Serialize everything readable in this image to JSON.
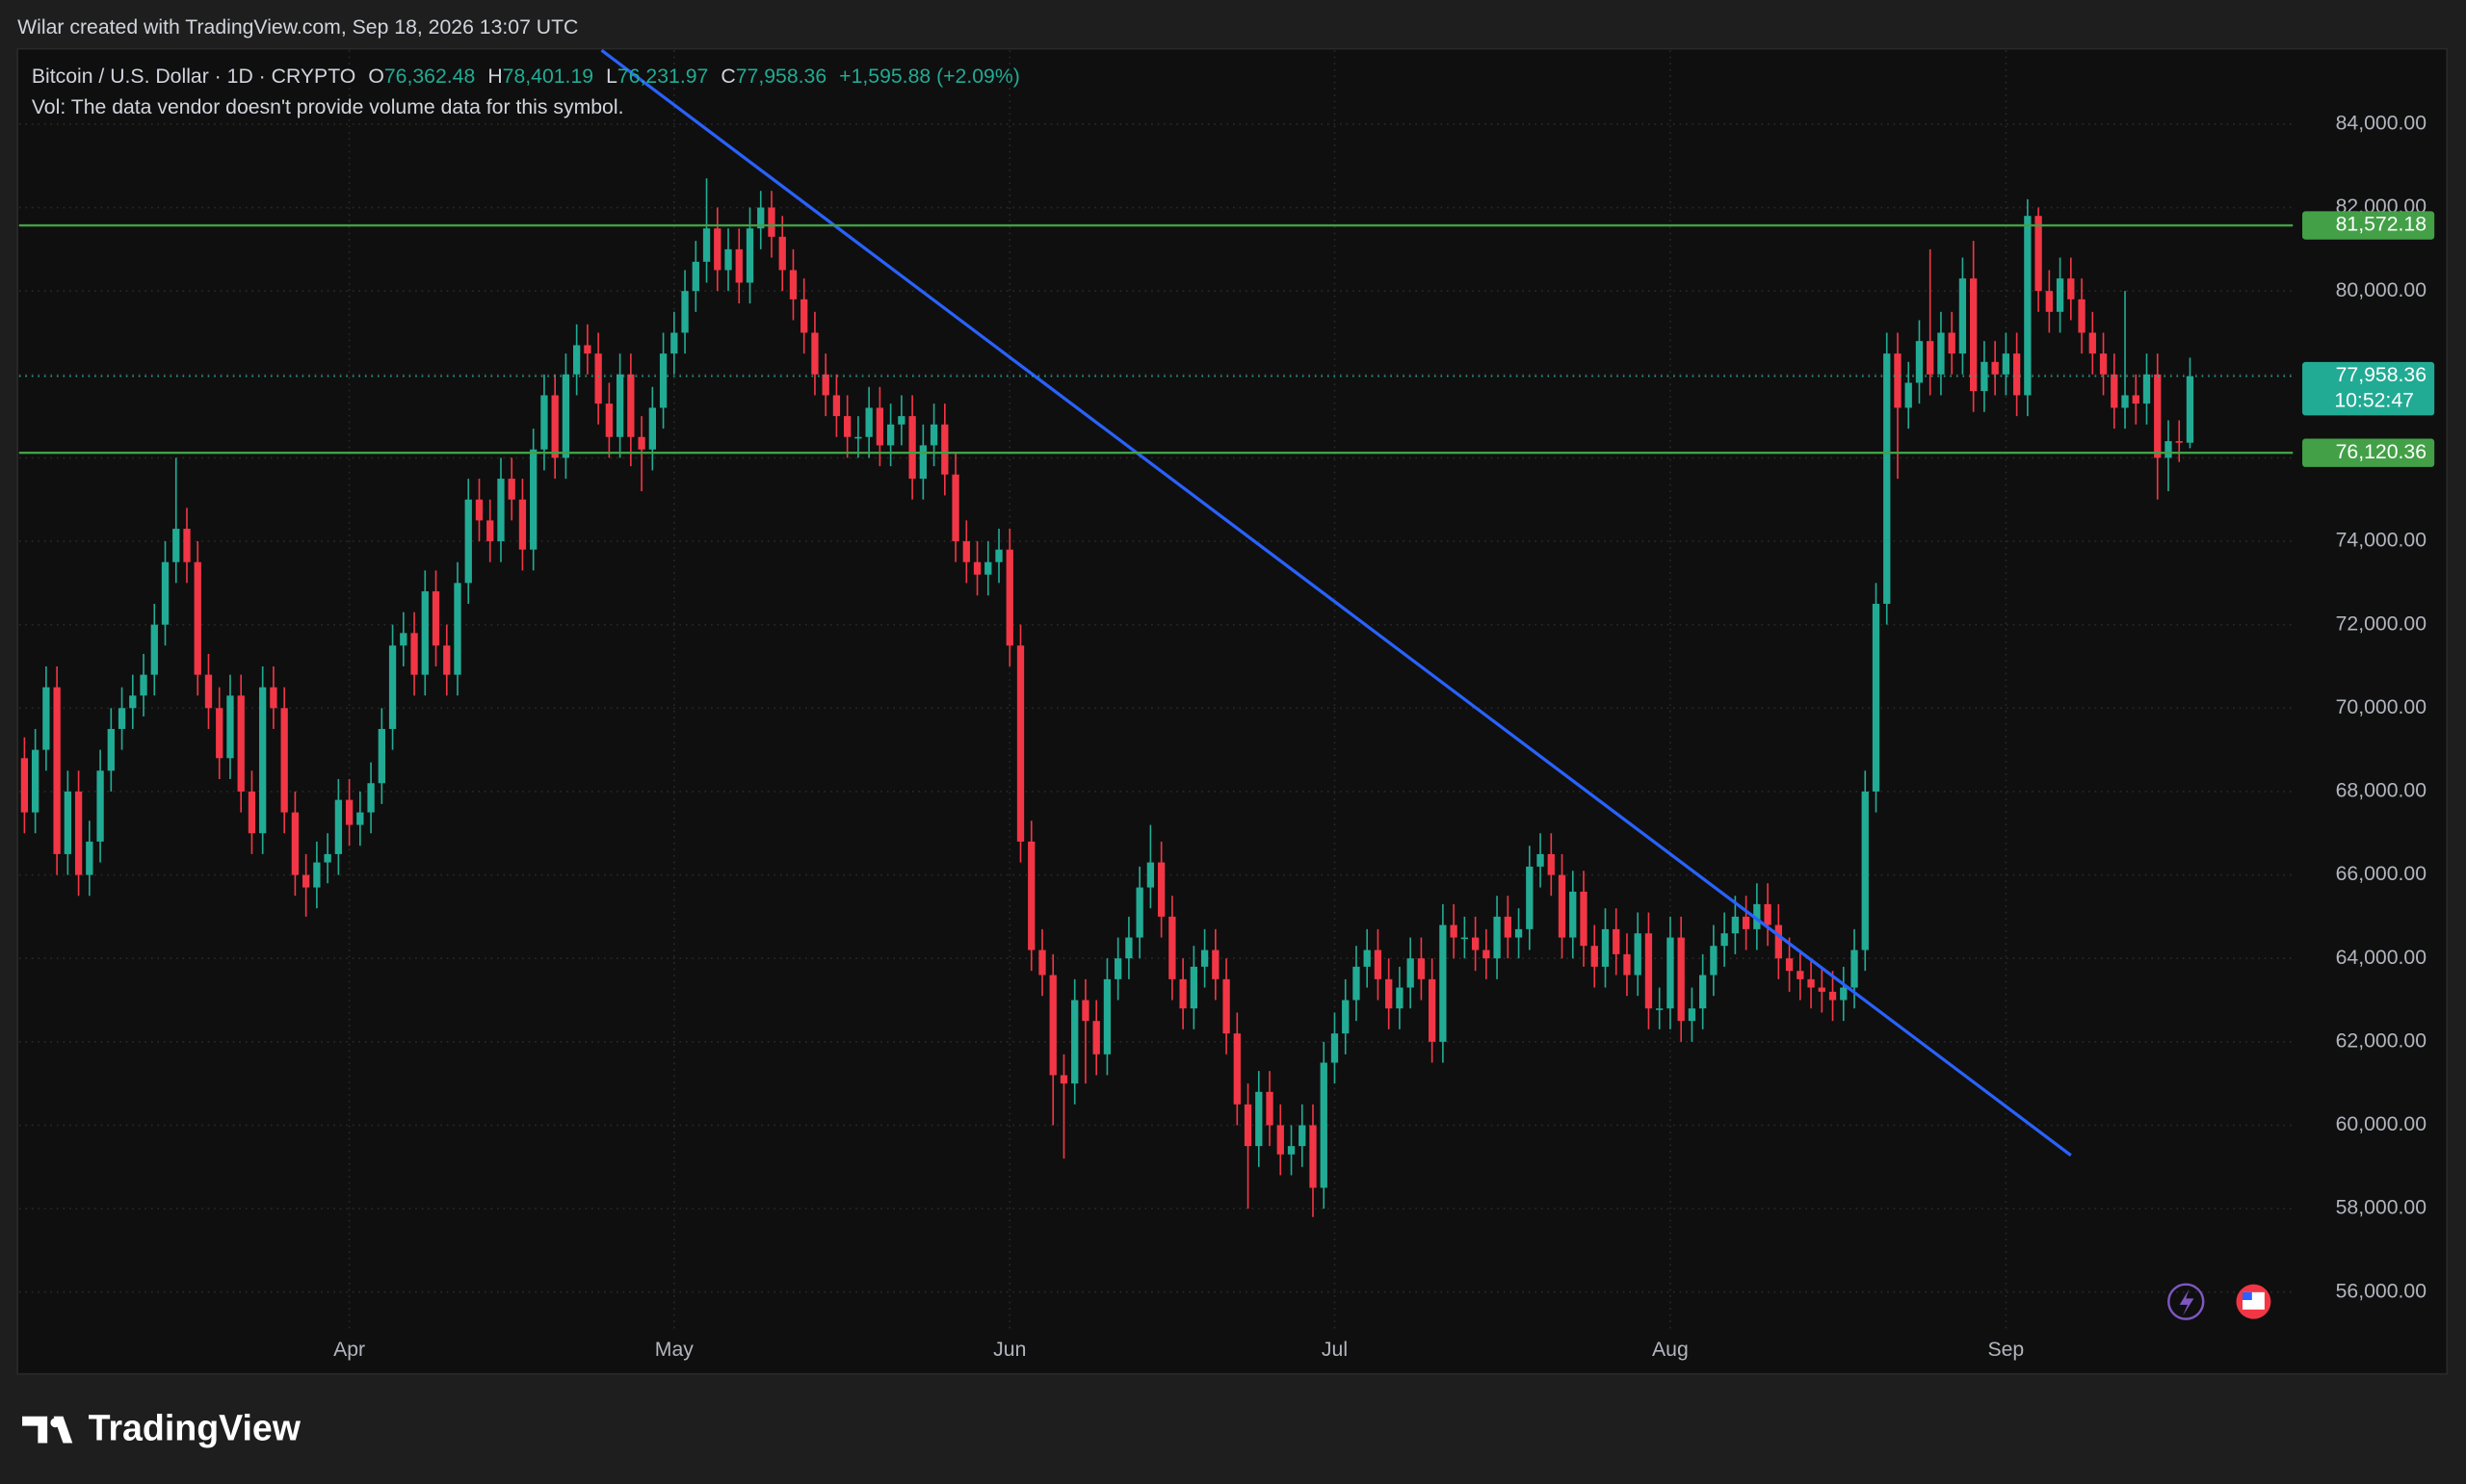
{
  "attribution": "Wilar created with TradingView.com, Sep 18, 2026 13:07 UTC",
  "brand": "TradingView",
  "chart_data": {
    "type": "candlestick",
    "legend_header": {
      "symbol": "Bitcoin / U.S. Dollar · 1D · CRYPTO",
      "o_letter": "O",
      "o": "76,362.48",
      "h_letter": "H",
      "h": "78,401.19",
      "l_letter": "L",
      "l": "76,231.97",
      "c_letter": "C",
      "c": "77,958.36",
      "change": "+1,595.88 (+2.09%)"
    },
    "volume_note": "Vol: The data vendor doesn't provide volume data for this symbol.",
    "up_color": "#22ab94",
    "down_color": "#f23645",
    "open": [
      68800,
      67500,
      69000,
      70500,
      66500,
      68000,
      66000,
      66800,
      68500,
      69500,
      70000,
      70300,
      70800,
      72000,
      73500,
      74300,
      73500,
      70800,
      70000,
      68800,
      70300,
      68000,
      67000,
      70500,
      70000,
      67500,
      66000,
      65700,
      66300,
      66500,
      67800,
      67200,
      67500,
      68200,
      69500,
      71500,
      71800,
      70800,
      72800,
      71500,
      70800,
      73000,
      75000,
      74500,
      74000,
      75500,
      75000,
      73800,
      76200,
      77500,
      76000,
      78000,
      78700,
      78500,
      77300,
      76500,
      78000,
      76500,
      76200,
      77200,
      78500,
      79000,
      80000,
      80700,
      81500,
      80500,
      81000,
      80200,
      81500,
      82000,
      81300,
      80500,
      79800,
      79000,
      78000,
      77500,
      77000,
      76500,
      76500,
      77200,
      76300,
      76800,
      77000,
      75500,
      76300,
      76800,
      75600,
      74000,
      73500,
      73200,
      73500,
      73800,
      71500,
      66800,
      64200,
      63600,
      61200,
      61000,
      63000,
      62500,
      61700,
      63500,
      64000,
      64500,
      65700,
      66300,
      65000,
      63500,
      62800,
      63800,
      64200,
      63500,
      62200,
      60500,
      59500,
      60800,
      60000,
      59300,
      59500,
      60000,
      58500,
      61500,
      62200,
      63000,
      63800,
      64200,
      63500,
      62800,
      63300,
      64000,
      63500,
      62000,
      64800,
      64500,
      64500,
      64200,
      64000,
      65000,
      64500,
      64700,
      66200,
      66500,
      66000,
      64500,
      65600,
      64300,
      63800,
      64700,
      64100,
      63600,
      64600,
      62800,
      62800,
      64500,
      62500,
      62800,
      63600,
      64300,
      64600,
      65000,
      64700,
      65300,
      64800,
      64000,
      63700,
      63500,
      63300,
      63200,
      63000,
      63300,
      64200,
      68000,
      72500,
      78500,
      77200,
      77800,
      78800,
      78000,
      79000,
      78500,
      80300,
      77600,
      78300,
      78000,
      78500,
      77500,
      81800,
      80000,
      79500,
      80300,
      79800,
      79000,
      78500,
      78000,
      77200,
      77500,
      77300,
      78000,
      76000,
      76400,
      76362.48
    ],
    "high": [
      69300,
      69500,
      71000,
      71000,
      68500,
      68500,
      67300,
      69000,
      70000,
      70500,
      70800,
      71300,
      72500,
      74000,
      76000,
      74800,
      74000,
      71300,
      70500,
      70800,
      70800,
      68500,
      71000,
      71000,
      70500,
      68000,
      66500,
      66800,
      67000,
      68300,
      68300,
      68000,
      68700,
      70000,
      72000,
      72300,
      72300,
      73300,
      73300,
      72000,
      73500,
      75500,
      75500,
      75000,
      76000,
      76000,
      75500,
      76700,
      78000,
      78000,
      78500,
      79200,
      79200,
      79000,
      77800,
      78500,
      78500,
      77000,
      77700,
      79000,
      79500,
      80500,
      81200,
      82700,
      82000,
      81500,
      81500,
      82000,
      82400,
      82400,
      81800,
      81000,
      80300,
      79500,
      78500,
      78000,
      77500,
      77000,
      77700,
      77700,
      77300,
      77500,
      77500,
      76800,
      77300,
      77300,
      76100,
      74500,
      74000,
      74000,
      74300,
      74300,
      72000,
      67300,
      64700,
      64100,
      61700,
      63500,
      63500,
      63000,
      64000,
      64500,
      65000,
      66200,
      67200,
      66800,
      65500,
      64000,
      64300,
      64700,
      64700,
      64000,
      62700,
      61000,
      61300,
      61300,
      60500,
      60000,
      60500,
      60500,
      62000,
      62700,
      63500,
      64300,
      64700,
      64700,
      64000,
      63800,
      64500,
      64500,
      64000,
      65300,
      65300,
      65000,
      65000,
      64700,
      65500,
      65500,
      65200,
      66700,
      67000,
      67000,
      66500,
      66100,
      66100,
      64800,
      65200,
      65200,
      64600,
      65100,
      65100,
      63300,
      65000,
      65000,
      63300,
      64100,
      64800,
      65100,
      65500,
      65500,
      65800,
      65800,
      65300,
      64500,
      64200,
      64000,
      63800,
      63700,
      63800,
      64700,
      68500,
      73000,
      79000,
      79000,
      78300,
      79300,
      81000,
      79500,
      79500,
      80800,
      81200,
      78800,
      78800,
      79000,
      79000,
      82200,
      82000,
      80500,
      80800,
      80800,
      80300,
      79500,
      79000,
      78500,
      80000,
      78000,
      78500,
      78500,
      76900,
      76900,
      78401.19
    ],
    "low": [
      67000,
      67000,
      68500,
      66000,
      66000,
      65500,
      65500,
      66300,
      68000,
      69000,
      69500,
      69800,
      70300,
      71500,
      73000,
      73000,
      70300,
      69500,
      68300,
      68300,
      67500,
      66500,
      66500,
      69500,
      67000,
      65500,
      65000,
      65200,
      65800,
      66000,
      66700,
      66700,
      67000,
      67700,
      69000,
      71000,
      70300,
      70300,
      71000,
      70300,
      70300,
      72500,
      74000,
      73500,
      73500,
      74500,
      73300,
      73300,
      75700,
      75500,
      75500,
      77500,
      78000,
      76800,
      76000,
      76000,
      75800,
      75200,
      75700,
      76700,
      78000,
      78500,
      79500,
      80200,
      80000,
      80000,
      79700,
      79700,
      81000,
      80800,
      80000,
      79300,
      78500,
      77500,
      77000,
      76500,
      76000,
      76000,
      76000,
      75800,
      75800,
      76300,
      75000,
      75000,
      75800,
      75100,
      73500,
      73000,
      72700,
      72700,
      73000,
      71000,
      66300,
      63700,
      63100,
      60000,
      59200,
      60500,
      61000,
      61200,
      61200,
      63000,
      63500,
      64000,
      65200,
      64500,
      63000,
      62300,
      62300,
      63300,
      63000,
      61700,
      60000,
      58000,
      59000,
      59500,
      58800,
      58800,
      59000,
      57800,
      58000,
      61000,
      61700,
      62500,
      63300,
      63000,
      62300,
      62300,
      62800,
      63000,
      61500,
      61500,
      64000,
      64000,
      63700,
      63500,
      63500,
      64000,
      64000,
      64200,
      65700,
      65500,
      64000,
      64000,
      63800,
      63300,
      63300,
      63600,
      63100,
      63100,
      62300,
      62300,
      62300,
      62000,
      62000,
      62300,
      63100,
      63800,
      64100,
      64200,
      64200,
      64300,
      63500,
      63200,
      63000,
      62800,
      62700,
      62500,
      62500,
      62800,
      63700,
      67500,
      72000,
      75500,
      76700,
      77300,
      77500,
      77500,
      78000,
      78000,
      77100,
      77100,
      77500,
      77500,
      77000,
      77000,
      79500,
      79000,
      79000,
      79300,
      78500,
      78000,
      77500,
      76700,
      76700,
      76800,
      76800,
      75000,
      75200,
      75900,
      76231.97
    ],
    "close": [
      67500,
      69000,
      70500,
      66500,
      68000,
      66000,
      66800,
      68500,
      69500,
      70000,
      70300,
      70800,
      72000,
      73500,
      74300,
      73500,
      70800,
      70000,
      68800,
      70300,
      68000,
      67000,
      70500,
      70000,
      67500,
      66000,
      65700,
      66300,
      66500,
      67800,
      67200,
      67500,
      68200,
      69500,
      71500,
      71800,
      70800,
      72800,
      71500,
      70800,
      73000,
      75000,
      74500,
      74000,
      75500,
      75000,
      73800,
      76200,
      77500,
      76000,
      78000,
      78700,
      78500,
      77300,
      76500,
      78000,
      76500,
      76200,
      77200,
      78500,
      79000,
      80000,
      80700,
      81500,
      80500,
      81000,
      80200,
      81500,
      82000,
      81300,
      80500,
      79800,
      79000,
      78000,
      77500,
      77000,
      76500,
      76500,
      77200,
      76300,
      76800,
      77000,
      75500,
      76300,
      76800,
      75600,
      74000,
      73500,
      73200,
      73500,
      73800,
      71500,
      66800,
      64200,
      63600,
      61200,
      61000,
      63000,
      62500,
      61700,
      63500,
      64000,
      64500,
      65700,
      66300,
      65000,
      63500,
      62800,
      63800,
      64200,
      63500,
      62200,
      60500,
      59500,
      60800,
      60000,
      59300,
      59500,
      60000,
      58500,
      61500,
      62200,
      63000,
      63800,
      64200,
      63500,
      62800,
      63300,
      64000,
      63500,
      62000,
      64800,
      64500,
      64500,
      64200,
      64000,
      65000,
      64500,
      64700,
      66200,
      66500,
      66000,
      64500,
      65600,
      64300,
      63800,
      64700,
      64100,
      63600,
      64600,
      62800,
      62800,
      64500,
      62500,
      62800,
      63600,
      64300,
      64600,
      65000,
      64700,
      65300,
      64800,
      64000,
      63700,
      63500,
      63300,
      63200,
      63000,
      63300,
      64200,
      68000,
      72500,
      78500,
      77200,
      77800,
      78800,
      78000,
      79000,
      78500,
      80300,
      77600,
      78300,
      78000,
      78500,
      77500,
      81800,
      80000,
      79500,
      80300,
      79800,
      79000,
      78500,
      78000,
      77200,
      77500,
      77300,
      78000,
      76000,
      76400,
      76362.48,
      77958.36
    ],
    "xlim": [
      -0.5,
      209.5
    ],
    "xticks": [
      {
        "value": 30,
        "label": "Apr"
      },
      {
        "value": 60,
        "label": "May"
      },
      {
        "value": 91,
        "label": "Jun"
      },
      {
        "value": 121,
        "label": "Jul"
      },
      {
        "value": 152,
        "label": "Aug"
      },
      {
        "value": 183,
        "label": "Sep"
      }
    ],
    "ylim": [
      55130,
      85770
    ],
    "yticks": [
      {
        "value": 56000,
        "label": "56,000.00"
      },
      {
        "value": 58000,
        "label": "58,000.00"
      },
      {
        "value": 60000,
        "label": "60,000.00"
      },
      {
        "value": 62000,
        "label": "62,000.00"
      },
      {
        "value": 64000,
        "label": "64,000.00"
      },
      {
        "value": 66000,
        "label": "66,000.00"
      },
      {
        "value": 68000,
        "label": "68,000.00"
      },
      {
        "value": 70000,
        "label": "70,000.00"
      },
      {
        "value": 72000,
        "label": "72,000.00"
      },
      {
        "value": 74000,
        "label": "74,000.00"
      },
      {
        "value": 76000,
        "label": "76,000.00"
      },
      {
        "value": 78000,
        "label": "78,000.00"
      },
      {
        "value": 80000,
        "label": "80,000.00"
      },
      {
        "value": 82000,
        "label": "82,000.00"
      },
      {
        "value": 84000,
        "label": "84,000.00"
      }
    ],
    "grid": true,
    "price_lines": [
      {
        "value": 81572.18,
        "label": "81,572.18",
        "color": "#43a047"
      },
      {
        "value": 76120.36,
        "label": "76,120.36",
        "color": "#43a047"
      }
    ],
    "last_price": {
      "label": "77,958.36",
      "countdown": "10:52:47",
      "color": "#22ab94"
    },
    "trendline": {
      "x": [
        53.3,
        189
      ],
      "y": [
        85770,
        59280
      ],
      "color": "#2962ff"
    }
  }
}
